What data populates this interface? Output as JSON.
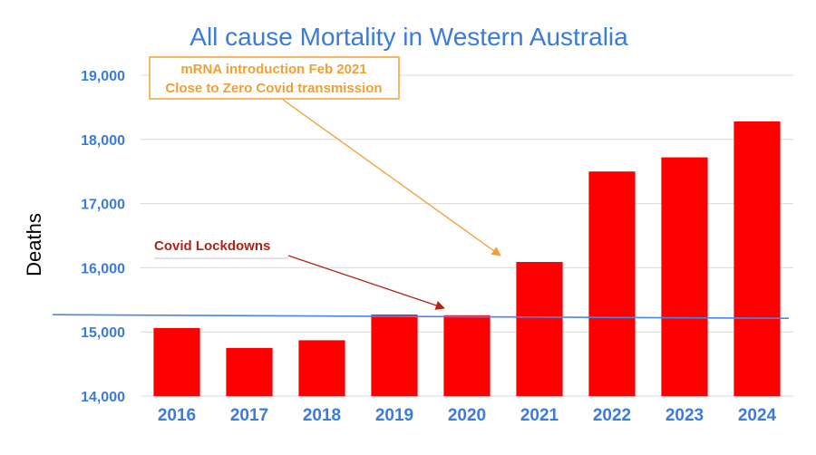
{
  "colors": {
    "title": "#3b7bdc",
    "axis_labels": "#3b7bdc",
    "bar": "#ff0000",
    "grid": "#d9d9d9",
    "reference_line": "#4a86e8",
    "annotation_mrna": "#f0a033",
    "annotation_lockdown": "#b02418"
  },
  "chart_data": {
    "type": "bar",
    "title": "All cause Mortality in Western Australia",
    "xlabel": "",
    "ylabel": "Deaths",
    "categories": [
      "2016",
      "2017",
      "2018",
      "2019",
      "2020",
      "2021",
      "2022",
      "2023",
      "2024"
    ],
    "values": [
      15060,
      14750,
      14870,
      15270,
      15260,
      16090,
      17500,
      17720,
      18280
    ],
    "ylim": [
      14000,
      19000
    ],
    "yticks": [
      14000,
      15000,
      16000,
      17000,
      18000,
      19000
    ],
    "ytick_labels": [
      "14,000",
      "15,000",
      "16,000",
      "17,000",
      "18,000",
      "19,000"
    ],
    "grid": true,
    "reference_line_value": 15240,
    "annotations": [
      {
        "id": "mrna",
        "lines": [
          "mRNA introduction Feb 2021",
          "Close to Zero Covid transmission"
        ],
        "points_to": "2021"
      },
      {
        "id": "lockdowns",
        "lines": [
          "Covid Lockdowns"
        ],
        "points_to": "2020"
      }
    ]
  }
}
